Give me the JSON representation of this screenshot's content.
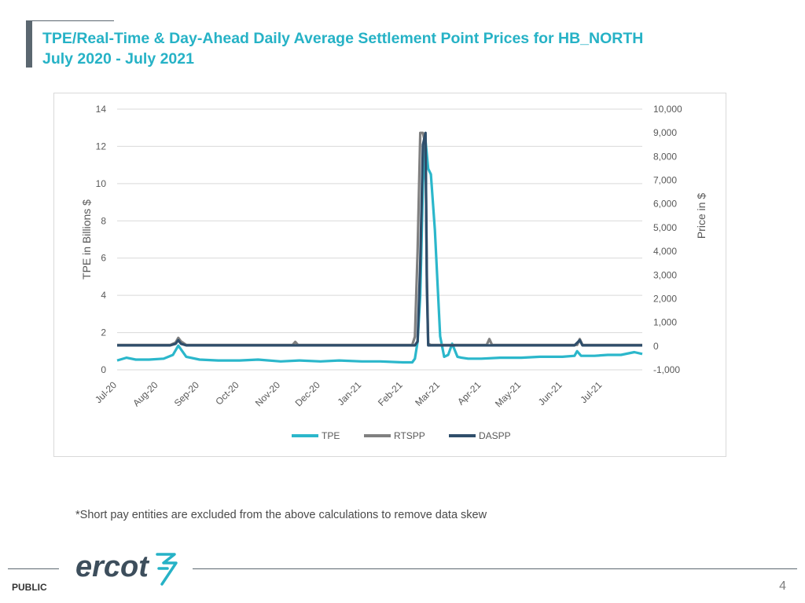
{
  "header": {
    "title_line1": "TPE/Real-Time & Day-Ahead Daily Average Settlement Point Prices for HB_NORTH",
    "title_line2": "July 2020 - July 2021"
  },
  "footnote": "*Short pay entities are excluded from the above calculations to remove data skew",
  "footer": {
    "logo_text": "ercot",
    "classification": "PUBLIC",
    "page_number": "4"
  },
  "colors": {
    "title": "#26b2c6",
    "tpe": "#2bb7cb",
    "rtspp": "#808080",
    "daspp": "#2f4e6b",
    "grid": "#d9d9d9",
    "logo": "#3d4e5c"
  },
  "chart_data": {
    "type": "line",
    "title": "",
    "ylabel": "TPE in Billions $",
    "y2label": "Price in $",
    "ylim": [
      0,
      14
    ],
    "y2lim": [
      -1000,
      10000
    ],
    "yticks": [
      "0",
      "2",
      "4",
      "6",
      "8",
      "10",
      "12",
      "14"
    ],
    "y2ticks": [
      "-1,000",
      "0",
      "1,000",
      "2,000",
      "3,000",
      "4,000",
      "5,000",
      "6,000",
      "7,000",
      "8,000",
      "9,000",
      "10,000"
    ],
    "xticks": [
      "Jul-20",
      "Aug-20",
      "Sep-20",
      "Oct-20",
      "Nov-20",
      "Dec-20",
      "Jan-21",
      "Feb-21",
      "Mar-21",
      "Apr-21",
      "May-21",
      "Jun-21",
      "Jul-21"
    ],
    "grid": true,
    "legend_position": "bottom",
    "series": [
      {
        "name": "TPE",
        "axis": "left",
        "x": [
          "2020-07-01",
          "2020-07-08",
          "2020-07-15",
          "2020-07-25",
          "2020-08-05",
          "2020-08-12",
          "2020-08-16",
          "2020-08-18",
          "2020-08-22",
          "2020-09-01",
          "2020-09-15",
          "2020-10-01",
          "2020-10-15",
          "2020-11-01",
          "2020-11-15",
          "2020-12-01",
          "2020-12-15",
          "2021-01-01",
          "2021-01-15",
          "2021-02-01",
          "2021-02-08",
          "2021-02-10",
          "2021-02-12",
          "2021-02-14",
          "2021-02-16",
          "2021-02-18",
          "2021-02-20",
          "2021-02-22",
          "2021-02-25",
          "2021-03-01",
          "2021-03-04",
          "2021-03-07",
          "2021-03-10",
          "2021-03-14",
          "2021-03-17",
          "2021-03-22",
          "2021-04-01",
          "2021-04-15",
          "2021-05-01",
          "2021-05-15",
          "2021-06-01",
          "2021-06-10",
          "2021-06-12",
          "2021-06-15",
          "2021-06-25",
          "2021-07-05",
          "2021-07-15",
          "2021-07-25",
          "2021-07-31"
        ],
        "values": [
          0.5,
          0.65,
          0.55,
          0.55,
          0.6,
          0.8,
          1.3,
          1.1,
          0.7,
          0.55,
          0.5,
          0.5,
          0.55,
          0.45,
          0.5,
          0.45,
          0.5,
          0.45,
          0.45,
          0.4,
          0.4,
          0.6,
          1.5,
          4.0,
          10.0,
          12.3,
          10.8,
          10.5,
          7.5,
          1.8,
          0.7,
          0.8,
          1.4,
          0.7,
          0.65,
          0.6,
          0.6,
          0.65,
          0.65,
          0.7,
          0.7,
          0.75,
          1.0,
          0.75,
          0.75,
          0.8,
          0.8,
          0.95,
          0.85
        ]
      },
      {
        "name": "RTSPP",
        "axis": "right",
        "x": [
          "2020-07-01",
          "2020-08-10",
          "2020-08-14",
          "2020-08-16",
          "2020-08-18",
          "2020-08-22",
          "2020-09-15",
          "2020-10-15",
          "2020-11-10",
          "2020-11-12",
          "2020-11-14",
          "2021-01-01",
          "2021-02-08",
          "2021-02-10",
          "2021-02-12",
          "2021-02-14",
          "2021-02-16",
          "2021-02-18",
          "2021-02-19",
          "2021-02-20",
          "2021-02-22",
          "2021-03-10",
          "2021-04-05",
          "2021-04-07",
          "2021-04-09",
          "2021-06-12",
          "2021-06-14",
          "2021-06-16",
          "2021-07-31"
        ],
        "values": [
          50,
          50,
          150,
          350,
          200,
          50,
          50,
          50,
          50,
          180,
          50,
          50,
          50,
          400,
          4000,
          9000,
          9000,
          8500,
          3000,
          100,
          50,
          50,
          50,
          300,
          50,
          50,
          300,
          50,
          50
        ]
      },
      {
        "name": "DASPP",
        "axis": "right",
        "x": [
          "2020-07-01",
          "2020-08-10",
          "2020-08-14",
          "2020-08-16",
          "2020-08-18",
          "2020-08-22",
          "2021-02-10",
          "2021-02-12",
          "2021-02-14",
          "2021-02-16",
          "2021-02-18",
          "2021-02-19",
          "2021-02-20",
          "2021-06-10",
          "2021-06-14",
          "2021-06-16",
          "2021-07-31"
        ],
        "values": [
          30,
          30,
          100,
          250,
          100,
          30,
          30,
          200,
          3500,
          8500,
          9000,
          2500,
          30,
          30,
          250,
          30,
          30
        ]
      }
    ]
  }
}
